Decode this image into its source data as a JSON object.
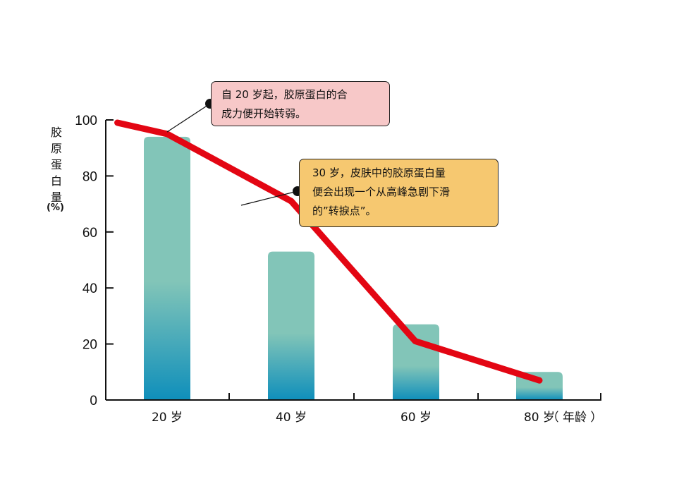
{
  "chart_data": {
    "type": "bar",
    "ylabel": "胶原蛋白量",
    "ylabel_unit": "(%)",
    "xlabel": "（ 年龄 ）",
    "categories": [
      "20 岁",
      "40 岁",
      "60 岁",
      "80 岁"
    ],
    "values": [
      94,
      53,
      27,
      10
    ],
    "line_series": {
      "x": [
        12,
        20,
        40,
        60,
        80
      ],
      "values": [
        99,
        95,
        71,
        21,
        7
      ]
    },
    "ylim": [
      0,
      100
    ],
    "yticks": [
      "0",
      "20",
      "40",
      "60",
      "80",
      "100"
    ],
    "bar_color_top": "#82c5b8",
    "bar_color_bottom": "#0f8fbb",
    "line_color": "#e30613",
    "annotations": [
      {
        "text_lines": [
          "自 20 岁起，胶原蛋白的合",
          "成力便开始转弱。"
        ],
        "background": "#f7c8c8"
      },
      {
        "text_lines": [
          "30 岁，皮肤中的胶原蛋白量",
          "便会出现一个从高峰急剧下滑",
          "的”转捩点”。"
        ],
        "background": "#f6c870"
      }
    ]
  }
}
